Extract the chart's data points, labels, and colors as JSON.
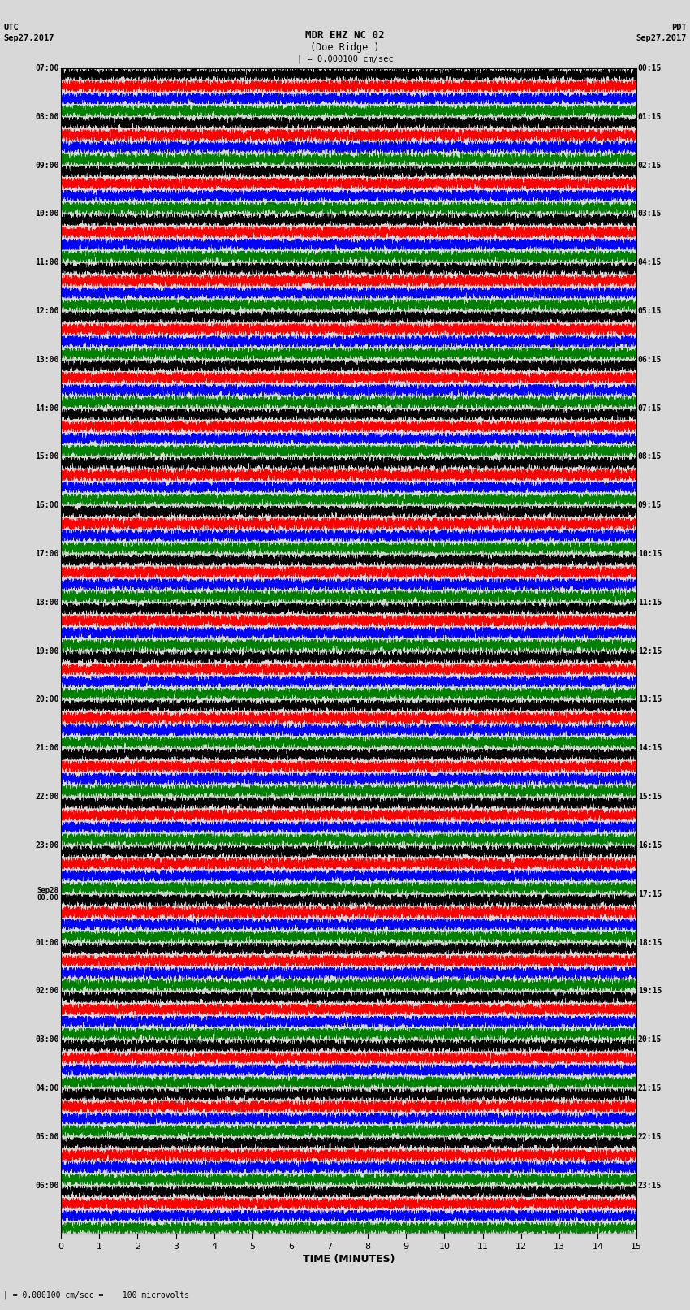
{
  "title_line1": "MDR EHZ NC 02",
  "title_line2": "(Doe Ridge )",
  "scale_label": "| = 0.000100 cm/sec",
  "footer_label": "| = 0.000100 cm/sec =    100 microvolts",
  "utc_label": "UTC",
  "utc_date": "Sep27,2017",
  "pdt_label": "PDT",
  "pdt_date": "Sep27,2017",
  "xlabel": "TIME (MINUTES)",
  "left_times": [
    "07:00",
    "08:00",
    "09:00",
    "10:00",
    "11:00",
    "12:00",
    "13:00",
    "14:00",
    "15:00",
    "16:00",
    "17:00",
    "18:00",
    "19:00",
    "20:00",
    "21:00",
    "22:00",
    "23:00",
    "Sep28\n00:00",
    "01:00",
    "02:00",
    "03:00",
    "04:00",
    "05:00",
    "06:00"
  ],
  "right_times": [
    "00:15",
    "01:15",
    "02:15",
    "03:15",
    "04:15",
    "05:15",
    "06:15",
    "07:15",
    "08:15",
    "09:15",
    "10:15",
    "11:15",
    "12:15",
    "13:15",
    "14:15",
    "15:15",
    "16:15",
    "17:15",
    "18:15",
    "19:15",
    "20:15",
    "21:15",
    "22:15",
    "23:15"
  ],
  "n_rows": 24,
  "traces_per_row": 4,
  "colors": [
    "black",
    "red",
    "blue",
    "green"
  ],
  "bg_color": "#e8e8e8",
  "plot_bg": "#e8e8e8",
  "grid_color": "#888888",
  "minutes": 15,
  "noise_amplitude": 0.28,
  "figwidth": 8.5,
  "figheight": 16.13
}
